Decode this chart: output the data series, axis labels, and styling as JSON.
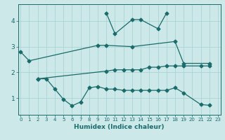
{
  "xlabel": "Humidex (Indice chaleur)",
  "bg_color": "#cce8e8",
  "grid_color": "#aad4d4",
  "line_color": "#1a6b6b",
  "x_ticks": [
    0,
    1,
    2,
    3,
    4,
    5,
    6,
    7,
    8,
    9,
    10,
    11,
    12,
    13,
    14,
    15,
    16,
    17,
    18,
    19,
    20,
    21,
    22,
    23
  ],
  "y_ticks": [
    1,
    2,
    3,
    4
  ],
  "xlim": [
    -0.3,
    23.3
  ],
  "ylim": [
    0.35,
    4.65
  ],
  "line1": {
    "x": [
      0,
      1,
      9,
      10,
      13,
      18,
      19,
      22
    ],
    "y": [
      2.8,
      2.45,
      3.05,
      3.05,
      3.0,
      3.2,
      2.35,
      2.35
    ]
  },
  "line2": {
    "x": [
      10,
      11,
      13,
      14,
      16,
      17
    ],
    "y": [
      4.3,
      3.5,
      4.05,
      4.05,
      3.7,
      4.3
    ]
  },
  "line3": {
    "x": [
      2,
      3,
      4,
      5,
      6,
      7,
      8,
      9,
      10,
      11,
      12,
      13,
      14,
      15,
      16,
      17,
      18,
      19,
      21,
      22
    ],
    "y": [
      1.75,
      1.75,
      1.35,
      0.95,
      0.7,
      0.85,
      1.4,
      1.45,
      1.35,
      1.35,
      1.3,
      1.3,
      1.3,
      1.3,
      1.3,
      1.3,
      1.4,
      1.2,
      0.75,
      0.72
    ]
  },
  "line4": {
    "x": [
      2,
      10,
      11,
      12,
      13,
      14,
      15,
      16,
      17,
      18,
      19,
      21,
      22
    ],
    "y": [
      1.75,
      2.05,
      2.1,
      2.1,
      2.1,
      2.1,
      2.2,
      2.2,
      2.25,
      2.25,
      2.25,
      2.25,
      2.25
    ]
  }
}
